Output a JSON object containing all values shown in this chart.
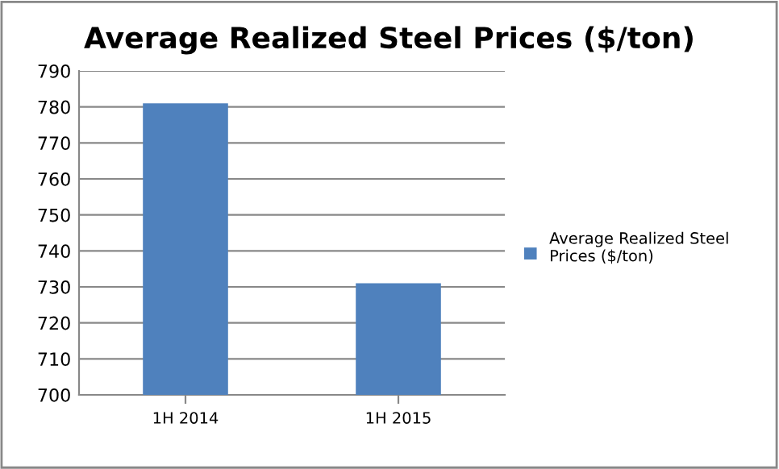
{
  "chart_data": {
    "type": "bar",
    "title": "Average Realized Steel Prices ($/ton)",
    "categories": [
      "1H 2014",
      "1H 2015"
    ],
    "series": [
      {
        "name": "Average Realized Steel Prices ($/ton)",
        "color": "#4f81bd",
        "values": [
          781,
          731
        ]
      }
    ],
    "ylim": [
      700,
      790
    ],
    "yticks": [
      700,
      710,
      720,
      730,
      740,
      750,
      760,
      770,
      780,
      790
    ],
    "grid": "y",
    "legend": "right"
  }
}
